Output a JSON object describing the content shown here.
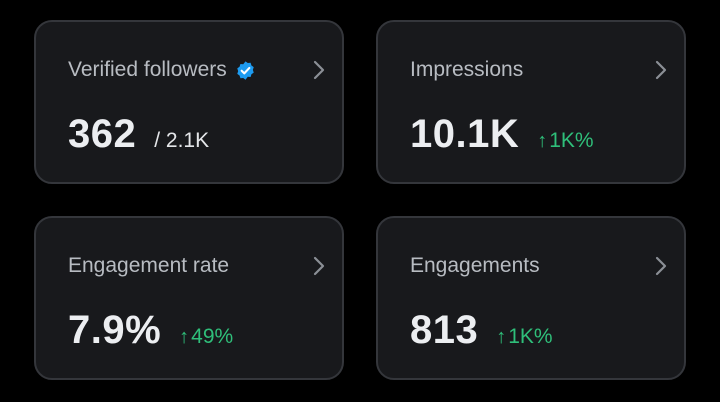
{
  "cards": [
    {
      "title": "Verified followers",
      "value": "362",
      "sub_value": "/ 2.1K",
      "verified_badge": true
    },
    {
      "title": "Impressions",
      "value": "10.1K",
      "change_arrow": "↑",
      "change": "1K%"
    },
    {
      "title": "Engagement rate",
      "value": "7.9%",
      "change_arrow": "↑",
      "change": "49%"
    },
    {
      "title": "Engagements",
      "value": "813",
      "change_arrow": "↑",
      "change": "1K%"
    }
  ],
  "icons": {
    "verified": "verified-badge-icon",
    "chevron": "chevron-right-icon"
  },
  "colors": {
    "background": "#000000",
    "card_background": "#18191c",
    "card_border": "#34363b",
    "title_text": "#b8bcc2",
    "value_text": "#eceef1",
    "positive_change": "#2fbf7a",
    "verified_blue": "#1d9bf0"
  }
}
